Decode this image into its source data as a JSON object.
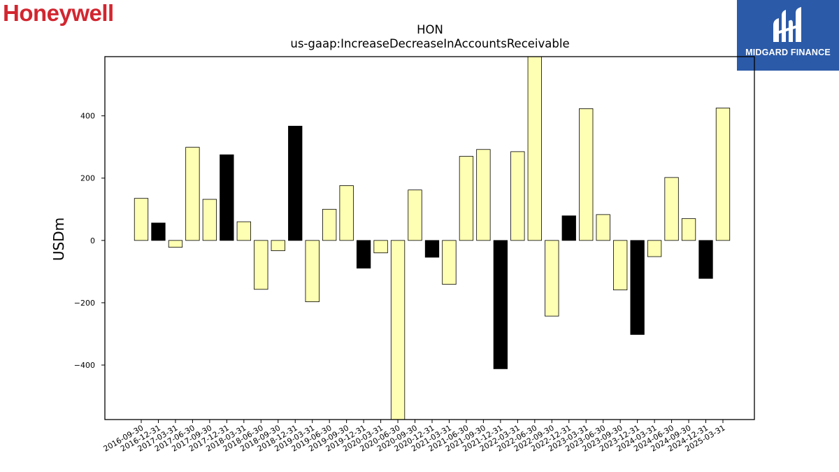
{
  "branding": {
    "company_logo_text": "Honeywell",
    "company_logo_color": "#d22630",
    "publisher_logo_text": "MIDGARD FINANCE",
    "publisher_logo_color": "#2b5aa8"
  },
  "chart_data": {
    "type": "bar",
    "title": "HON",
    "subtitle": "us-gaap:IncreaseDecreaseInAccountsReceivable",
    "ylabel": "USDm",
    "xlabel": "",
    "ylim": [
      -575,
      590
    ],
    "yticks": [
      -400,
      -200,
      0,
      200,
      400
    ],
    "grid": false,
    "legend": "none",
    "colors": {
      "light": "#ffffb3",
      "dark": "#000000",
      "edge": "#000000"
    },
    "categories": [
      "2016-09-30",
      "2016-12-31",
      "2017-03-31",
      "2017-06-30",
      "2017-09-30",
      "2017-12-31",
      "2018-03-31",
      "2018-06-30",
      "2018-09-30",
      "2018-12-31",
      "2019-03-31",
      "2019-06-30",
      "2019-09-30",
      "2019-12-31",
      "2020-03-31",
      "2020-06-30",
      "2020-09-30",
      "2020-12-31",
      "2021-03-31",
      "2021-06-30",
      "2021-09-30",
      "2021-12-31",
      "2022-03-31",
      "2022-06-30",
      "2022-09-30",
      "2022-12-31",
      "2023-03-31",
      "2023-06-30",
      "2023-09-30",
      "2023-12-31",
      "2024-03-31",
      "2024-06-30",
      "2024-09-30",
      "2024-12-31",
      "2025-03-31"
    ],
    "values": [
      135,
      56,
      -22,
      299,
      132,
      275,
      60,
      -157,
      -33,
      367,
      -197,
      100,
      176,
      -89,
      -40,
      -575,
      162,
      -54,
      -141,
      270,
      292,
      -412,
      285,
      590,
      -243,
      79,
      423,
      83,
      -159,
      -302,
      -52,
      202,
      70,
      -122,
      425
    ],
    "bar_colors": [
      "light",
      "dark",
      "light",
      "light",
      "light",
      "dark",
      "light",
      "light",
      "light",
      "dark",
      "light",
      "light",
      "light",
      "dark",
      "light",
      "light",
      "light",
      "dark",
      "light",
      "light",
      "light",
      "dark",
      "light",
      "light",
      "light",
      "dark",
      "light",
      "light",
      "light",
      "dark",
      "light",
      "light",
      "light",
      "dark",
      "light"
    ]
  }
}
